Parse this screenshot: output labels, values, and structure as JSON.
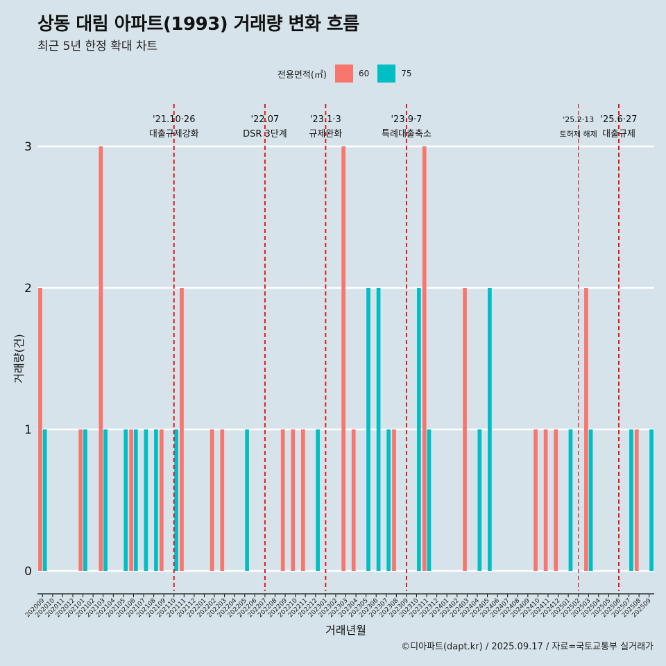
{
  "title": "상동 대림 아파트(1993) 거래량 변화 흐름",
  "subtitle": "최근 5년 한정 확대 차트",
  "caption": "©디아파트(dapt.kr) / 2025.09.17 / 자료=국토교통부 실거래가",
  "legend": {
    "title": "전용면적(㎡)",
    "items": [
      {
        "label": "60",
        "color": "#f8766d"
      },
      {
        "label": "75",
        "color": "#00bfc4"
      }
    ]
  },
  "chart_data": {
    "type": "bar",
    "xlabel": "거래년월",
    "ylabel": "거래량(건)",
    "ylim": [
      0,
      3
    ],
    "yticks": [
      0,
      1,
      2,
      3
    ],
    "grid": true,
    "legend_position": "top",
    "categories": [
      "202009",
      "202010",
      "202011",
      "202012",
      "202101",
      "202102",
      "202103",
      "202104",
      "202105",
      "202106",
      "202107",
      "202108",
      "202109",
      "202110",
      "202111",
      "202112",
      "202201",
      "202202",
      "202203",
      "202204",
      "202205",
      "202206",
      "202207",
      "202208",
      "202209",
      "202210",
      "202211",
      "202212",
      "202301",
      "202302",
      "202303",
      "202304",
      "202305",
      "202306",
      "202307",
      "202308",
      "202309",
      "202310",
      "202311",
      "202312",
      "202401",
      "202402",
      "202403",
      "202404",
      "202405",
      "202406",
      "202407",
      "202408",
      "202409",
      "202410",
      "202411",
      "202412",
      "202501",
      "202502",
      "202503",
      "202504",
      "202505",
      "202506",
      "202507",
      "202508",
      "202509"
    ],
    "series": [
      {
        "name": "60",
        "color": "#f8766d",
        "values": [
          2,
          0,
          0,
          0,
          1,
          0,
          3,
          0,
          0,
          1,
          0,
          0,
          1,
          0,
          2,
          0,
          0,
          1,
          1,
          0,
          0,
          0,
          0,
          0,
          1,
          1,
          1,
          0,
          0,
          0,
          3,
          1,
          0,
          0,
          0,
          1,
          0,
          0,
          3,
          0,
          0,
          0,
          2,
          0,
          0,
          0,
          0,
          0,
          0,
          1,
          1,
          1,
          0,
          0,
          2,
          0,
          0,
          0,
          0,
          1,
          0
        ]
      },
      {
        "name": "75",
        "color": "#00bfc4",
        "values": [
          1,
          0,
          0,
          0,
          1,
          0,
          1,
          0,
          1,
          1,
          1,
          1,
          0,
          1,
          0,
          0,
          0,
          0,
          0,
          0,
          1,
          0,
          0,
          0,
          0,
          0,
          0,
          1,
          0,
          0,
          0,
          0,
          2,
          2,
          1,
          0,
          0,
          2,
          1,
          0,
          0,
          0,
          0,
          1,
          2,
          0,
          0,
          0,
          0,
          0,
          0,
          0,
          1,
          0,
          1,
          0,
          0,
          0,
          1,
          0,
          1
        ]
      }
    ],
    "events": [
      {
        "date": "'21.10·26",
        "label": "대출규제강화",
        "category": "202110",
        "style": "thick"
      },
      {
        "date": "'22.07",
        "label": "DSR 3단계",
        "category": "202207",
        "style": "thick"
      },
      {
        "date": "'23.1·3",
        "label": "규제완화",
        "category": "202301",
        "style": "thick"
      },
      {
        "date": "'23.9·7",
        "label": "특례대출축소",
        "category": "202309",
        "style": "thick"
      },
      {
        "date": "'25.2·13",
        "label": "토허제 해제",
        "category": "202502",
        "style": "thin"
      },
      {
        "date": "'25.6·27",
        "label": "대출규제",
        "category": "202506",
        "style": "thick"
      }
    ]
  }
}
